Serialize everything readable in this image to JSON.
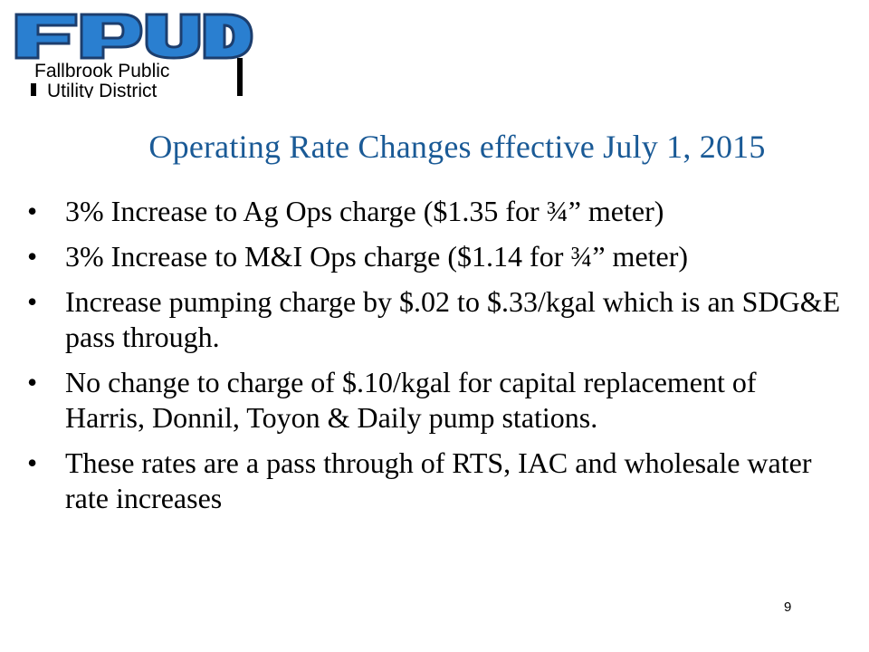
{
  "logo": {
    "mark": "FPUD",
    "line1": "Fallbrook Public",
    "line2": "Utility District"
  },
  "slide": {
    "title": "Operating Rate Changes effective July 1, 2015",
    "bullet_glyph": "•",
    "bullets": [
      "3% Increase to Ag Ops charge ($1.35 for ¾” meter)",
      "3% Increase to M&I Ops charge ($1.14 for ¾” meter)",
      "Increase pumping charge by $.02 to $.33/kgal which is an SDG&E pass through.",
      "No change to charge of $.10/kgal for capital replacement of Harris, Donnil, Toyon & Daily pump stations.",
      "These rates are a pass through of RTS, IAC and wholesale water rate increases"
    ],
    "page_number": "9"
  },
  "colors": {
    "title": "#1a5a96",
    "logo_blue": "#2a7fd0",
    "logo_dark": "#1c3e6e",
    "text": "#000000"
  }
}
